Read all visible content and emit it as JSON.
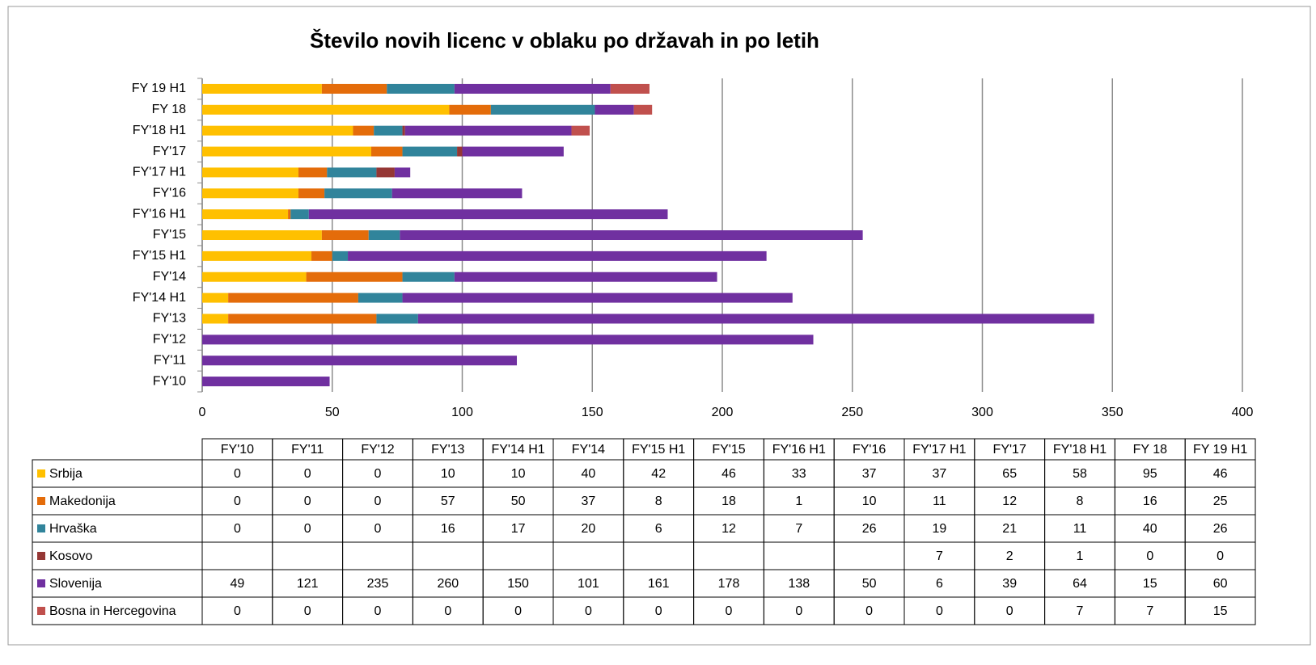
{
  "chart_data": {
    "type": "bar",
    "orientation": "horizontal",
    "stacked": true,
    "title": "Število novih licenc v oblaku po državah in po letih",
    "categories": [
      "FY'10",
      "FY'11",
      "FY'12",
      "FY'13",
      "FY'14 H1",
      "FY'14",
      "FY'15 H1",
      "FY'15",
      "FY'16 H1",
      "FY'16",
      "FY'17 H1",
      "FY'17",
      "FY'18 H1",
      "FY 18",
      "FY 19 H1"
    ],
    "series": [
      {
        "name": "Srbija",
        "color": "#ffc000",
        "values": [
          0,
          0,
          0,
          10,
          10,
          40,
          42,
          46,
          33,
          37,
          37,
          65,
          58,
          95,
          46
        ]
      },
      {
        "name": "Makedonija",
        "color": "#e46c0a",
        "values": [
          0,
          0,
          0,
          57,
          50,
          37,
          8,
          18,
          1,
          10,
          11,
          12,
          8,
          16,
          25
        ]
      },
      {
        "name": "Hrvaška",
        "color": "#31849b",
        "values": [
          0,
          0,
          0,
          16,
          17,
          20,
          6,
          12,
          7,
          26,
          19,
          21,
          11,
          40,
          26
        ]
      },
      {
        "name": "Kosovo",
        "color": "#953735",
        "values": [
          null,
          null,
          null,
          null,
          null,
          null,
          null,
          null,
          null,
          null,
          7,
          2,
          1,
          0,
          0
        ]
      },
      {
        "name": "Slovenija",
        "color": "#7030a0",
        "values": [
          49,
          121,
          235,
          260,
          150,
          101,
          161,
          178,
          138,
          50,
          6,
          39,
          64,
          15,
          60
        ]
      },
      {
        "name": "Bosna in Hercegovina",
        "color": "#c0504d",
        "values": [
          0,
          0,
          0,
          0,
          0,
          0,
          0,
          0,
          0,
          0,
          0,
          0,
          7,
          7,
          15
        ]
      }
    ],
    "xlim": [
      0,
      400
    ],
    "xticks": [
      0,
      50,
      100,
      150,
      200,
      250,
      300,
      350,
      400
    ],
    "grid": true,
    "data_table": true
  }
}
